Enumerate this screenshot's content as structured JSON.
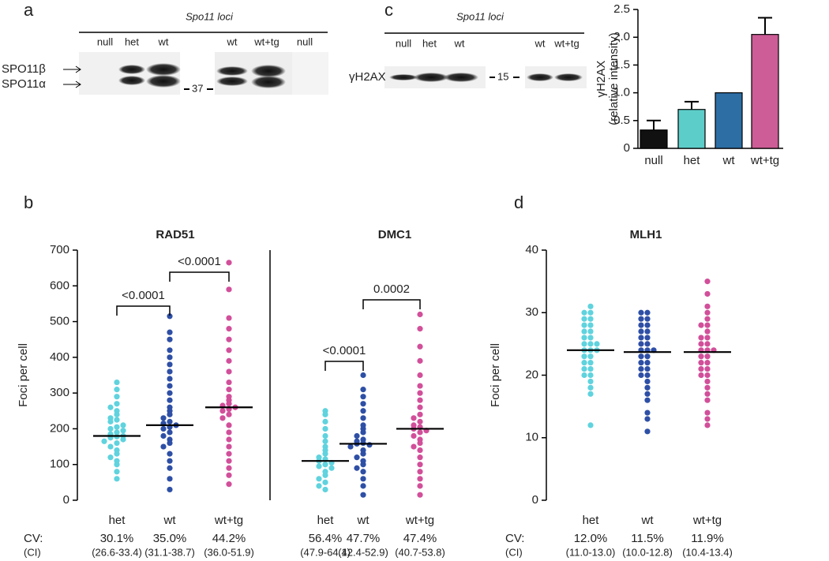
{
  "blot_a": {
    "panel_label": "a",
    "header": "Spo11 loci",
    "lanes": [
      "null",
      "het",
      "wt",
      "wt",
      "wt+tg",
      "null"
    ],
    "bands": [
      "SPO11β",
      "SPO11α"
    ],
    "marker": "37"
  },
  "blot_c": {
    "panel_label": "c",
    "header": "Spo11 loci",
    "lanes": [
      "null",
      "het",
      "wt",
      "wt",
      "wt+tg"
    ],
    "band": "γH2AX",
    "marker": "15"
  },
  "chart_data": [
    {
      "type": "bar",
      "y_label": [
        "γH2AX",
        "(relative intensity)"
      ],
      "categories": [
        "null",
        "het",
        "wt",
        "wt+tg"
      ],
      "values": [
        0.33,
        0.7,
        1.0,
        2.05
      ],
      "errors": [
        0.17,
        0.14,
        null,
        0.3
      ],
      "colors": [
        "#111111",
        "#5ccdc9",
        "#2d6ea5",
        "#cc5d96"
      ],
      "ylim": [
        0,
        2.5
      ],
      "yticks": [
        0,
        0.5,
        {
          "value": 1.0,
          "label": "1.0"
        },
        1.5,
        {
          "value": 2.0,
          "label": "2.0"
        },
        2.5
      ]
    },
    {
      "type": "dot",
      "panel_label": "b",
      "title": "RAD51",
      "y_label": "Foci per cell",
      "ylim": [
        0,
        700
      ],
      "yticks": [
        0,
        100,
        200,
        300,
        400,
        500,
        600,
        700
      ],
      "cv_heading": "CV:",
      "ci_heading": "(CI)",
      "comparisons": [
        {
          "groups": [
            "het",
            "wt"
          ],
          "label": "<0.0001"
        },
        {
          "groups": [
            "wt",
            "wt+tg"
          ],
          "label": "<0.0001"
        }
      ],
      "series": [
        {
          "name": "het",
          "color": "#5fd3de",
          "median": 180,
          "cv": 30.1,
          "cv_label": "30.1%",
          "ci": [
            26.6,
            33.4
          ],
          "ci_label": "(26.6-33.4)",
          "values": [
            330,
            310,
            290,
            270,
            260,
            250,
            240,
            230,
            225,
            220,
            210,
            205,
            200,
            195,
            190,
            185,
            180,
            178,
            175,
            170,
            165,
            160,
            150,
            140,
            130,
            120,
            110,
            100,
            80,
            60
          ]
        },
        {
          "name": "wt",
          "color": "#2e4fa6",
          "median": 210,
          "cv": 35.0,
          "cv_label": "35.0%",
          "ci": [
            31.1,
            38.7
          ],
          "ci_label": "(31.1-38.7)",
          "values": [
            515,
            470,
            450,
            420,
            400,
            380,
            360,
            340,
            320,
            300,
            280,
            260,
            250,
            240,
            230,
            220,
            215,
            210,
            205,
            200,
            190,
            180,
            170,
            160,
            150,
            130,
            110,
            90,
            60,
            30
          ]
        },
        {
          "name": "wt+tg",
          "color": "#d24f9a",
          "median": 260,
          "cv": 44.2,
          "cv_label": "44.2%",
          "ci": [
            36.0,
            51.9
          ],
          "ci_label": "(36.0-51.9)",
          "values": [
            665,
            590,
            510,
            480,
            450,
            420,
            390,
            360,
            330,
            310,
            290,
            280,
            270,
            265,
            260,
            255,
            250,
            240,
            230,
            210,
            190,
            170,
            150,
            130,
            110,
            90,
            70,
            45
          ]
        }
      ]
    },
    {
      "type": "dot",
      "title": "DMC1",
      "ylim": [
        0,
        700
      ],
      "comparisons": [
        {
          "groups": [
            "het",
            "wt"
          ],
          "label": "<0.0001"
        },
        {
          "groups": [
            "wt",
            "wt+tg"
          ],
          "label": "0.0002"
        }
      ],
      "series": [
        {
          "name": "het",
          "color": "#5fd3de",
          "median": 110,
          "cv": 56.4,
          "cv_label": "56.4%",
          "ci": [
            47.9,
            64.1
          ],
          "ci_label": "(47.9-64.1)",
          "values": [
            250,
            240,
            220,
            200,
            180,
            165,
            150,
            140,
            130,
            120,
            115,
            110,
            105,
            100,
            95,
            90,
            80,
            70,
            60,
            50,
            40,
            30
          ]
        },
        {
          "name": "wt",
          "color": "#2e4fa6",
          "median": 158,
          "cv": 47.7,
          "cv_label": "47.7%",
          "ci": [
            42.4,
            52.9
          ],
          "ci_label": "(42.4-52.9)",
          "values": [
            350,
            310,
            290,
            270,
            250,
            230,
            210,
            200,
            190,
            180,
            170,
            165,
            160,
            158,
            155,
            150,
            140,
            130,
            120,
            110,
            100,
            90,
            80,
            60,
            40,
            15
          ]
        },
        {
          "name": "wt+tg",
          "color": "#d24f9a",
          "median": 200,
          "cv": 47.4,
          "cv_label": "47.4%",
          "ci": [
            40.7,
            53.8
          ],
          "ci_label": "(40.7-53.8)",
          "values": [
            520,
            480,
            430,
            390,
            350,
            320,
            300,
            280,
            260,
            240,
            230,
            220,
            210,
            205,
            200,
            195,
            190,
            180,
            170,
            160,
            150,
            140,
            120,
            100,
            80,
            60,
            40,
            15
          ]
        }
      ]
    },
    {
      "type": "dot",
      "panel_label": "d",
      "title": "MLH1",
      "y_label": "Foci per cell",
      "ylim": [
        0,
        40
      ],
      "yticks": [
        0,
        10,
        20,
        30,
        40
      ],
      "cv_heading": "CV:",
      "ci_heading": "(CI)",
      "series": [
        {
          "name": "het",
          "color": "#5fd3de",
          "median": 24,
          "cv": 12.0,
          "cv_label": "12.0%",
          "ci": [
            11.0,
            13.0
          ],
          "ci_label": "(11.0-13.0)",
          "values": [
            31,
            30,
            30,
            29,
            29,
            28,
            28,
            27,
            27,
            26,
            26,
            25,
            25,
            25,
            24,
            24,
            24,
            23,
            23,
            22,
            22,
            21,
            21,
            20,
            20,
            19,
            18,
            17,
            12
          ]
        },
        {
          "name": "wt",
          "color": "#2e4fa6",
          "median": 23.7,
          "cv": 11.5,
          "cv_label": "11.5%",
          "ci": [
            10.0,
            12.8
          ],
          "ci_label": "(10.0-12.8)",
          "values": [
            30,
            30,
            29,
            29,
            28,
            28,
            27,
            27,
            26,
            26,
            25,
            25,
            24,
            24,
            24,
            23,
            23,
            22,
            22,
            21,
            21,
            20,
            20,
            19,
            18,
            17,
            16,
            14,
            13,
            11
          ]
        },
        {
          "name": "wt+tg",
          "color": "#d24f9a",
          "median": 23.7,
          "cv": 11.9,
          "cv_label": "11.9%",
          "ci": [
            10.4,
            13.4
          ],
          "ci_label": "(10.4-13.4)",
          "values": [
            35,
            33,
            31,
            30,
            29,
            28,
            28,
            27,
            26,
            26,
            25,
            25,
            24,
            24,
            24,
            23,
            23,
            22,
            22,
            21,
            21,
            20,
            20,
            19,
            18,
            17,
            16,
            14,
            13,
            12
          ]
        }
      ]
    }
  ]
}
